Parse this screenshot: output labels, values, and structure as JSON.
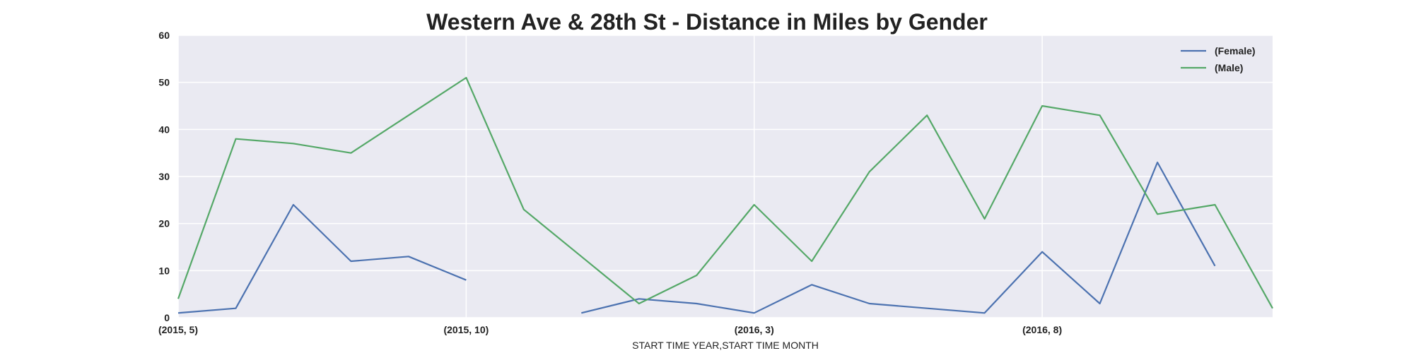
{
  "chart_data": {
    "type": "line",
    "title": "Western Ave & 28th St - Distance in Miles by Gender",
    "xlabel": "START TIME YEAR,START TIME MONTH",
    "ylabel": "",
    "ylim": [
      0,
      60
    ],
    "yticks": [
      0,
      10,
      20,
      30,
      40,
      50,
      60
    ],
    "x": [
      "(2015, 5)",
      "(2015, 6)",
      "(2015, 7)",
      "(2015, 8)",
      "(2015, 9)",
      "(2015, 10)",
      "(2015, 11)",
      "(2015, 12)",
      "(2016, 1)",
      "(2016, 2)",
      "(2016, 3)",
      "(2016, 4)",
      "(2016, 5)",
      "(2016, 6)",
      "(2016, 7)",
      "(2016, 8)",
      "(2016, 9)",
      "(2016, 10)",
      "(2016, 11)",
      "(2016, 12)"
    ],
    "xtick_labels": [
      "(2015, 5)",
      "(2015, 10)",
      "(2016, 3)",
      "(2016, 8)"
    ],
    "grid": true,
    "legend_position": "top-right",
    "series": [
      {
        "name": "(Female)",
        "color": "#4c72b0",
        "values": [
          1,
          2,
          24,
          12,
          13,
          8,
          null,
          1,
          4,
          3,
          1,
          7,
          3,
          2,
          1,
          14,
          3,
          33,
          11,
          null
        ]
      },
      {
        "name": "(Male)",
        "color": "#55a868",
        "values": [
          4,
          38,
          37,
          35,
          43,
          51,
          23,
          13,
          3,
          9,
          24,
          12,
          31,
          43,
          21,
          45,
          43,
          22,
          24,
          2
        ]
      }
    ]
  }
}
